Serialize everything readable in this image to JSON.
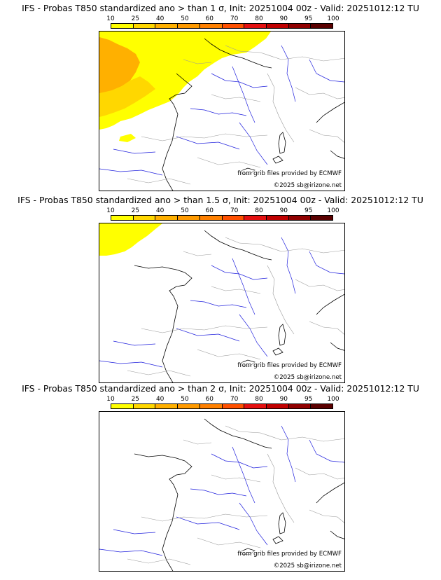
{
  "colorbar": {
    "ticks": [
      "10",
      "25",
      "40",
      "50",
      "60",
      "70",
      "80",
      "90",
      "95",
      "100"
    ],
    "colors": [
      "#ffff00",
      "#ffd700",
      "#ffb000",
      "#ff9a00",
      "#ff8000",
      "#ff5000",
      "#e41010",
      "#c00000",
      "#900000",
      "#5a0000"
    ]
  },
  "panels": [
    {
      "title": "IFS - Probas T850  standardized ano > than 1 σ, Init: 20251004 00z - Valid: 20251012:12 TU",
      "credit_source": "from grib files provided by ECMWF",
      "credit_copyright": "©2025 sb@irizone.net"
    },
    {
      "title": "IFS - Probas T850  standardized ano > than 1.5 σ, Init: 20251004 00z - Valid: 20251012:12 TU",
      "credit_source": "from grib files provided by ECMWF",
      "credit_copyright": "©2025 sb@irizone.net"
    },
    {
      "title": "IFS - Probas T850  standardized ano > than 2 σ, Init: 20251004 00z - Valid: 20251012:12 TU",
      "credit_source": "from grib files provided by ECMWF",
      "credit_copyright": "©2025 sb@irizone.net"
    }
  ]
}
